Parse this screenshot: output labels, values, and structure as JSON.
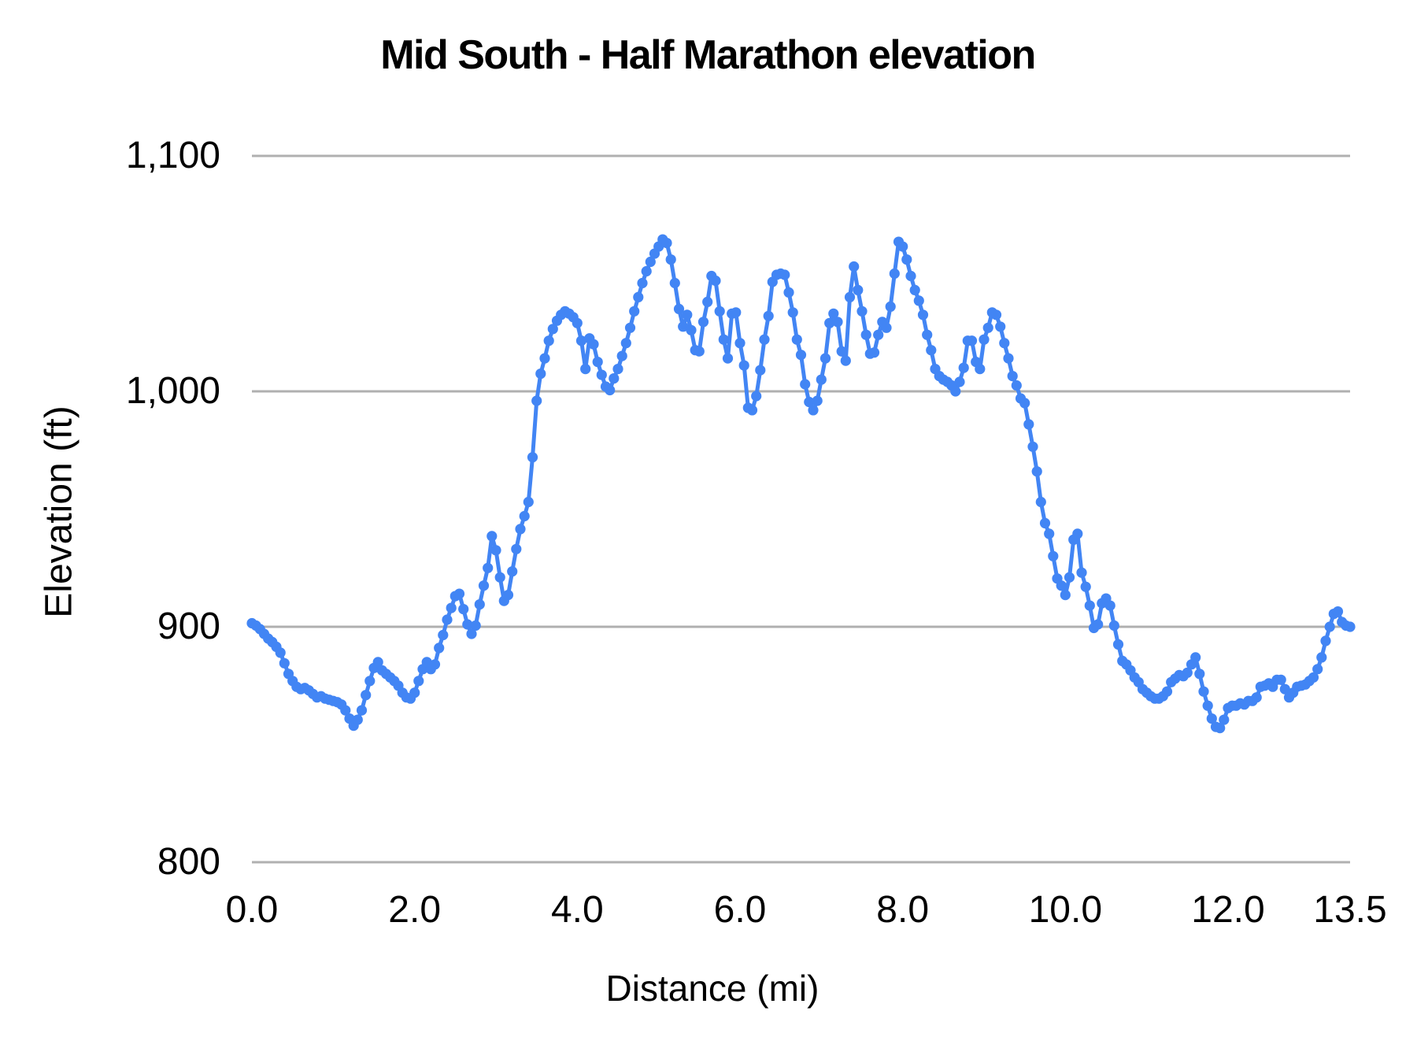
{
  "chart_data": {
    "type": "line",
    "title": "Mid South - Half Marathon elevation",
    "xlabel": "Distance (mi)",
    "ylabel": "Elevation (ft)",
    "xlim": [
      0,
      13.5
    ],
    "ylim": [
      800,
      1100
    ],
    "grid": "horizontal-only",
    "legend": "none",
    "background": "#ffffff",
    "x_ticks": {
      "values": [
        0,
        2,
        4,
        6,
        8,
        10,
        12,
        13.5
      ],
      "labels": [
        "0.0",
        "2.0",
        "4.0",
        "6.0",
        "8.0",
        "10.0",
        "12.0",
        "13.5"
      ]
    },
    "y_ticks": {
      "values": [
        1100,
        1000,
        900,
        800
      ],
      "labels": [
        "1,100",
        "1,000",
        "900",
        "800"
      ]
    },
    "colors": {
      "series": "#4285f4",
      "gridline": "#b0b0b0",
      "text": "#000000"
    },
    "series": [
      {
        "name": "elevation",
        "color": "#4285f4",
        "marker": "circle",
        "x_start": 0,
        "x_step": 0.05,
        "values": [
          901.5,
          900.5,
          899,
          897,
          895,
          893.5,
          891.5,
          889,
          884.5,
          880,
          877,
          874.5,
          873.5,
          874,
          873,
          871.5,
          870,
          870.5,
          869.5,
          869,
          868.5,
          868,
          867,
          864.5,
          861,
          858,
          860.5,
          864.5,
          871,
          877,
          882.5,
          885,
          881.5,
          880,
          878.5,
          877,
          875,
          872,
          870,
          869.5,
          872,
          877,
          882,
          885,
          882,
          884,
          891,
          896.5,
          903,
          908,
          913,
          914,
          907.5,
          901,
          897,
          900.5,
          909.5,
          917.5,
          925,
          938.5,
          932.5,
          921,
          911,
          913.5,
          923.5,
          933,
          941.5,
          947,
          953,
          972,
          996,
          1007.5,
          1014,
          1021.5,
          1026.5,
          1030,
          1032.5,
          1034,
          1033,
          1031.5,
          1029,
          1021.5,
          1009.5,
          1022.5,
          1020,
          1012.5,
          1007,
          1002,
          1000.5,
          1005.5,
          1009.5,
          1015,
          1020.5,
          1027,
          1034,
          1040,
          1046,
          1051,
          1055,
          1058.5,
          1061.5,
          1064.5,
          1063,
          1056,
          1046,
          1035,
          1027.5,
          1032.5,
          1026,
          1017.5,
          1017,
          1029.5,
          1038,
          1049,
          1047,
          1034,
          1022,
          1014,
          1033,
          1033.5,
          1020.5,
          1011,
          993,
          992,
          998,
          1009,
          1022,
          1032,
          1046.5,
          1049.5,
          1050,
          1049.5,
          1042,
          1033.5,
          1022,
          1015.5,
          1003,
          995.5,
          992,
          996,
          1005,
          1014,
          1029,
          1033,
          1029.5,
          1017,
          1013,
          1040,
          1053,
          1043,
          1034,
          1024,
          1016,
          1016.5,
          1024,
          1029.5,
          1027,
          1036,
          1050,
          1063.5,
          1061.5,
          1056,
          1049,
          1043,
          1038.5,
          1032.5,
          1024,
          1017.5,
          1009.5,
          1006.5,
          1005,
          1004,
          1002.5,
          1000,
          1004,
          1010,
          1021.5,
          1021.5,
          1012.5,
          1009.5,
          1022,
          1027,
          1033.5,
          1032.5,
          1027.5,
          1020.5,
          1014,
          1006.5,
          1002.5,
          997,
          995,
          986,
          976.5,
          966,
          953,
          944,
          939.5,
          930,
          920.5,
          917.5,
          913.5,
          921,
          937,
          939.5,
          923,
          917,
          909,
          899.5,
          901,
          910,
          912,
          909,
          900.5,
          892.5,
          885.5,
          884,
          881.5,
          878.5,
          876.5,
          873.5,
          872,
          870.5,
          869.5,
          869.5,
          870.5,
          872.5,
          876.5,
          878,
          879.5,
          879,
          880.5,
          884,
          887,
          880,
          872.5,
          866.5,
          861,
          857.5,
          857,
          860.5,
          865.5,
          866.5,
          866.5,
          867.5,
          867,
          868.5,
          868.5,
          870,
          874.5,
          875,
          876,
          874.5,
          877.5,
          877.5,
          873.5,
          870,
          872,
          874.5,
          875,
          875.5,
          877,
          878.5,
          882,
          887,
          894,
          900,
          905.5,
          906.5,
          902,
          900.5,
          900
        ]
      }
    ]
  }
}
